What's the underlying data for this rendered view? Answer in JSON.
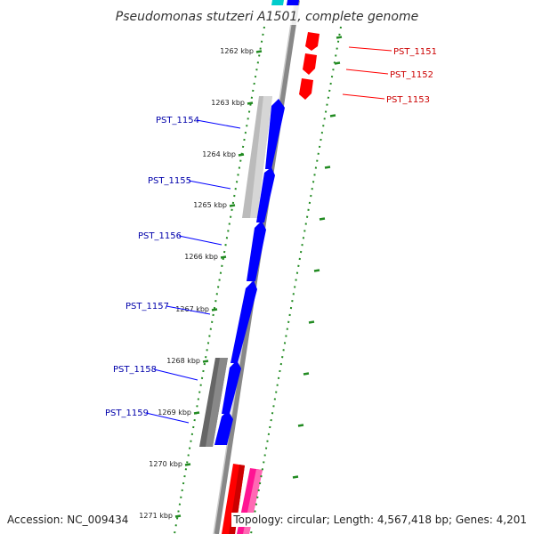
{
  "title": "Pseudomonas stutzeri A1501, complete genome",
  "accession": "Accession: NC_009434",
  "topology": "Topology: circular; Length: 4,567,418 bp; Genes: 4,201",
  "colors": {
    "forward": "#0000ff",
    "reverse": "#ff0000",
    "forward_label": "#0000aa",
    "reverse_label": "#cc0000",
    "tick": "#228b22",
    "backbone": "#888888",
    "gray_light": "#bbbbbb",
    "gray_dark": "#666666",
    "pink": "#ff1493",
    "cyan": "#00cccc"
  },
  "ticks": [
    {
      "label": "1262 kbp"
    },
    {
      "label": "1263 kbp"
    },
    {
      "label": "1264 kbp"
    },
    {
      "label": "1265 kbp"
    },
    {
      "label": "1266 kbp"
    },
    {
      "label": "1267 kbp"
    },
    {
      "label": "1268 kbp"
    },
    {
      "label": "1269 kbp"
    },
    {
      "label": "1270 kbp"
    },
    {
      "label": "1271 kbp"
    }
  ],
  "genes_left": [
    {
      "name": "PST_1154"
    },
    {
      "name": "PST_1155"
    },
    {
      "name": "PST_1156"
    },
    {
      "name": "PST_1157"
    },
    {
      "name": "PST_1158"
    },
    {
      "name": "PST_1159"
    }
  ],
  "genes_right": [
    {
      "name": "PST_1151"
    },
    {
      "name": "PST_1152"
    },
    {
      "name": "PST_1153"
    }
  ]
}
